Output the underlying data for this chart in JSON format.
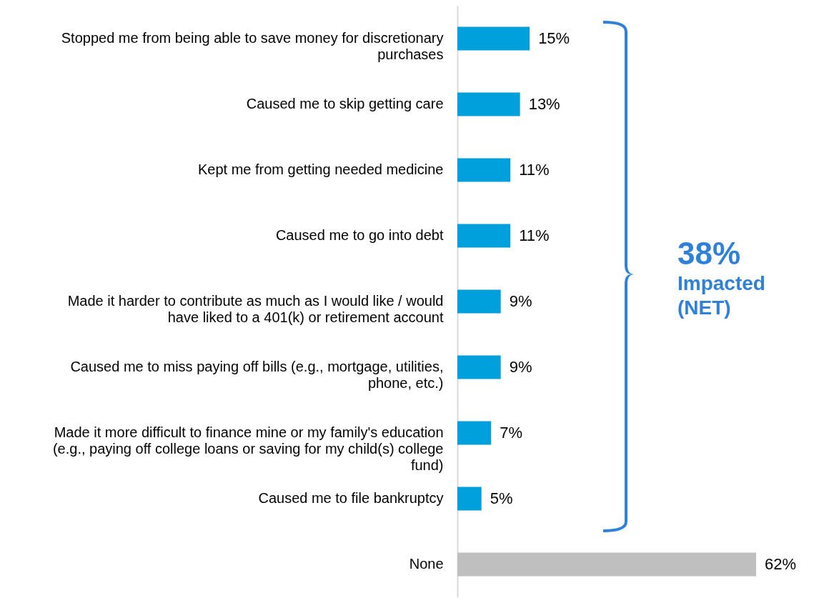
{
  "chart_data": {
    "type": "bar",
    "orientation": "horizontal",
    "categories": [
      "Stopped me from being able to save money for discretionary purchases",
      "Caused me to skip getting care",
      "Kept me from getting needed medicine",
      "Caused me to go into debt",
      "Made it harder to contribute as much as I would like / would have liked to a 401(k) or retirement account",
      "Caused me to miss paying off bills (e.g., mortgage, utilities, phone, etc.)",
      "Made it more difficult to finance mine or my family's education (e.g., paying off college loans or saving for my child(s) college fund)",
      "Caused me to file bankruptcy",
      "None"
    ],
    "values": [
      15,
      13,
      11,
      11,
      9,
      9,
      7,
      5,
      62
    ],
    "colors": [
      "#00a0dc",
      "#00a0dc",
      "#00a0dc",
      "#00a0dc",
      "#00a0dc",
      "#00a0dc",
      "#00a0dc",
      "#00a0dc",
      "#bfbfbf"
    ],
    "value_labels": [
      "15%",
      "13%",
      "11%",
      "11%",
      "9%",
      "9%",
      "7%",
      "5%",
      "62%"
    ],
    "annotations": [
      "38%",
      "Impacted (NET)"
    ]
  }
}
